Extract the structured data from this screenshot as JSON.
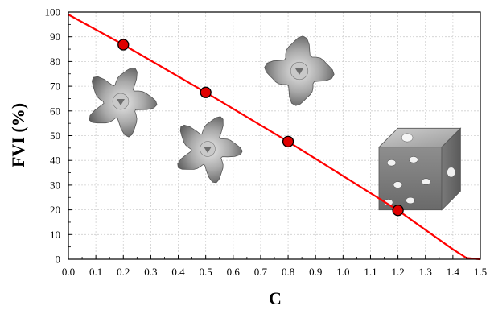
{
  "chart_data": {
    "type": "line",
    "title": "",
    "xlabel": "C",
    "ylabel": "FVI (%)",
    "xlim": [
      0.0,
      1.5
    ],
    "ylim": [
      0,
      100
    ],
    "xticks": [
      "0.0",
      "0.1",
      "0.2",
      "0.3",
      "0.4",
      "0.5",
      "0.6",
      "0.7",
      "0.8",
      "0.9",
      "1.0",
      "1.1",
      "1.2",
      "1.3",
      "1.4",
      "1.5"
    ],
    "yticks": [
      "0",
      "10",
      "20",
      "30",
      "40",
      "50",
      "60",
      "70",
      "80",
      "90",
      "100"
    ],
    "grid": true,
    "series": [
      {
        "kind": "fit-line",
        "color": "#ff0000",
        "x": [
          0.0,
          0.2,
          0.5,
          0.8,
          1.2,
          1.4,
          1.45,
          1.5
        ],
        "y": [
          99,
          86.8,
          67.5,
          47.6,
          19.8,
          4.0,
          0.5,
          0
        ]
      },
      {
        "kind": "markers",
        "color": "#e00000",
        "x": [
          0.2,
          0.5,
          0.8,
          1.2
        ],
        "y": [
          86.8,
          67.5,
          47.6,
          19.8
        ]
      }
    ],
    "insets": [
      {
        "name": "gyroid-c02-icon",
        "x": 0.2
      },
      {
        "name": "gyroid-c05-icon",
        "x": 0.5
      },
      {
        "name": "gyroid-c08-icon",
        "x": 0.8
      },
      {
        "name": "gyroid-c12-icon",
        "x": 1.2
      }
    ]
  }
}
